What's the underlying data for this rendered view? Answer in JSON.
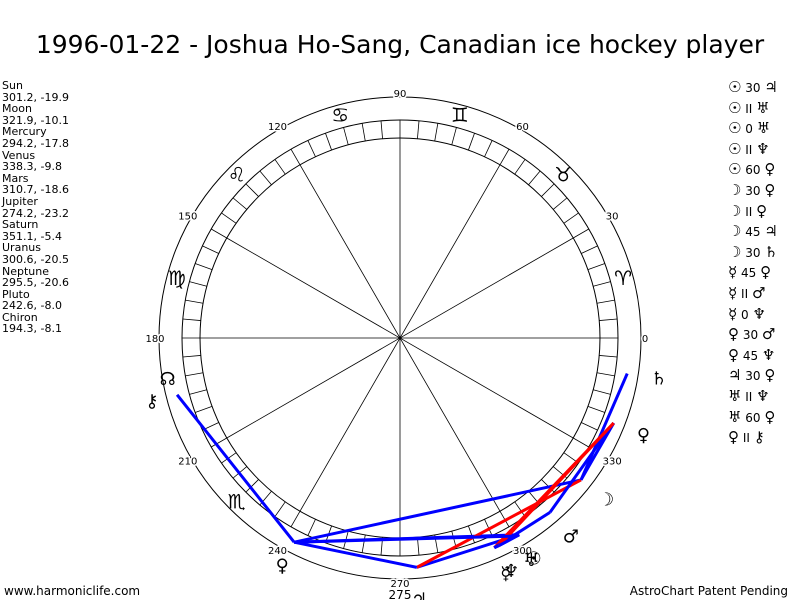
{
  "title": "1996-01-22 - Joshua Ho-Sang, Canadian ice hockey player",
  "planets": [
    {
      "name": "Sun",
      "lon": 301.2,
      "lat": -19.9,
      "coords": "301.2, -19.9",
      "glyph": "☉"
    },
    {
      "name": "Moon",
      "lon": 321.9,
      "lat": -10.1,
      "coords": "321.9, -10.1",
      "glyph": "☽"
    },
    {
      "name": "Mercury",
      "lon": 294.2,
      "lat": -17.8,
      "coords": "294.2, -17.8",
      "glyph": "☿"
    },
    {
      "name": "Venus",
      "lon": 338.3,
      "lat": -9.8,
      "coords": "338.3, -9.8",
      "glyph": "♀"
    },
    {
      "name": "Mars",
      "lon": 310.7,
      "lat": -18.6,
      "coords": "310.7, -18.6",
      "glyph": "♂"
    },
    {
      "name": "Jupiter",
      "lon": 274.2,
      "lat": -23.2,
      "coords": "274.2, -23.2",
      "glyph": "♃"
    },
    {
      "name": "Saturn",
      "lon": 351.1,
      "lat": -5.4,
      "coords": "351.1, -5.4",
      "glyph": "♄"
    },
    {
      "name": "Uranus",
      "lon": 300.6,
      "lat": -20.5,
      "coords": "300.6, -20.5",
      "glyph": "♅"
    },
    {
      "name": "Neptune",
      "lon": 295.5,
      "lat": -20.6,
      "coords": "295.5, -20.6",
      "glyph": "♆"
    },
    {
      "name": "Pluto",
      "lon": 242.6,
      "lat": -8.0,
      "coords": "242.6, -8.0",
      "glyph": "♀"
    },
    {
      "name": "Chiron",
      "lon": 194.3,
      "lat": -8.1,
      "coords": "194.3, -8.1",
      "glyph": "⚷"
    }
  ],
  "node": {
    "lon": 190,
    "glyph": "☊"
  },
  "zodiac": [
    {
      "sign": "aries",
      "lon": 15,
      "glyph": "♈"
    },
    {
      "sign": "taurus",
      "lon": 45,
      "glyph": "♉"
    },
    {
      "sign": "gemini",
      "lon": 75,
      "glyph": "♊"
    },
    {
      "sign": "cancer",
      "lon": 105,
      "glyph": "♋"
    },
    {
      "sign": "leo",
      "lon": 135,
      "glyph": "♌"
    },
    {
      "sign": "virgo",
      "lon": 165,
      "glyph": "♍"
    },
    {
      "sign": "scorpio",
      "lon": 225,
      "glyph": "♏"
    }
  ],
  "degree_labels": [
    {
      "text": "0",
      "lon": 0
    },
    {
      "text": "30",
      "lon": 30
    },
    {
      "text": "60",
      "lon": 60
    },
    {
      "text": "90",
      "lon": 90
    },
    {
      "text": "120",
      "lon": 120
    },
    {
      "text": "150",
      "lon": 150
    },
    {
      "text": "180",
      "lon": 180
    },
    {
      "text": "210",
      "lon": 210
    },
    {
      "text": "240",
      "lon": 240
    },
    {
      "text": "270",
      "lon": 270
    },
    {
      "text": "300",
      "lon": 300
    },
    {
      "text": "330",
      "lon": 330
    }
  ],
  "extra_label": "275",
  "aspects": [
    {
      "p1": "Sun",
      "p1g": "☉",
      "angle": "30",
      "p2": "Jupiter",
      "p2g": "♃",
      "color": "#0000ff"
    },
    {
      "p1": "Sun",
      "p1g": "☉",
      "angle": "II",
      "p2": "Uranus",
      "p2g": "♅",
      "color": "#0000ff"
    },
    {
      "p1": "Sun",
      "p1g": "☉",
      "angle": "0",
      "p2": "Uranus",
      "p2g": "♅",
      "color": "#0000ff"
    },
    {
      "p1": "Sun",
      "p1g": "☉",
      "angle": "II",
      "p2": "Neptune",
      "p2g": "♆",
      "color": "#0000ff"
    },
    {
      "p1": "Sun",
      "p1g": "☉",
      "angle": "60",
      "p2": "Pluto",
      "p2g": "♀",
      "color": "#0000ff"
    },
    {
      "p1": "Moon",
      "p1g": "☽",
      "angle": "30",
      "p2": "Venus",
      "p2g": "♀",
      "color": "#0000ff"
    },
    {
      "p1": "Moon",
      "p1g": "☽",
      "angle": "II",
      "p2": "Pluto",
      "p2g": "♀",
      "color": "#0000ff"
    },
    {
      "p1": "Moon",
      "p1g": "☽",
      "angle": "45",
      "p2": "Jupiter",
      "p2g": "♃",
      "color": "#ff0000"
    },
    {
      "p1": "Moon",
      "p1g": "☽",
      "angle": "30",
      "p2": "Saturn",
      "p2g": "♄",
      "color": "#0000ff"
    },
    {
      "p1": "Mercury",
      "p1g": "☿",
      "angle": "45",
      "p2": "Venus",
      "p2g": "♀",
      "color": "#ff0000"
    },
    {
      "p1": "Mercury",
      "p1g": "☿",
      "angle": "II",
      "p2": "Mars",
      "p2g": "♂",
      "color": "#0000ff"
    },
    {
      "p1": "Mercury",
      "p1g": "☿",
      "angle": "0",
      "p2": "Neptune",
      "p2g": "♆",
      "color": "#0000ff"
    },
    {
      "p1": "Venus",
      "p1g": "♀",
      "angle": "30",
      "p2": "Mars",
      "p2g": "♂",
      "color": "#0000ff"
    },
    {
      "p1": "Venus",
      "p1g": "♀",
      "angle": "45",
      "p2": "Neptune",
      "p2g": "♆",
      "color": "#ff0000"
    },
    {
      "p1": "Jupiter",
      "p1g": "♃",
      "angle": "30",
      "p2": "Pluto",
      "p2g": "♀",
      "color": "#0000ff"
    },
    {
      "p1": "Uranus",
      "p1g": "♅",
      "angle": "II",
      "p2": "Neptune",
      "p2g": "♆",
      "color": "#0000ff"
    },
    {
      "p1": "Uranus",
      "p1g": "♅",
      "angle": "60",
      "p2": "Pluto",
      "p2g": "♀",
      "color": "#0000ff"
    },
    {
      "p1": "Pluto",
      "p1g": "♀",
      "angle": "II",
      "p2": "Chiron",
      "p2g": "⚷",
      "color": "#0000ff"
    }
  ],
  "node_line": {
    "from": "Chiron",
    "to": "Pluto",
    "color": "#c8a000"
  },
  "footer": {
    "left": "www.harmoniclife.com",
    "right": "AstroChart Patent Pending"
  },
  "colors": {
    "blue": "#0000ff",
    "red": "#ff0000",
    "dotted": "#c8a000"
  }
}
